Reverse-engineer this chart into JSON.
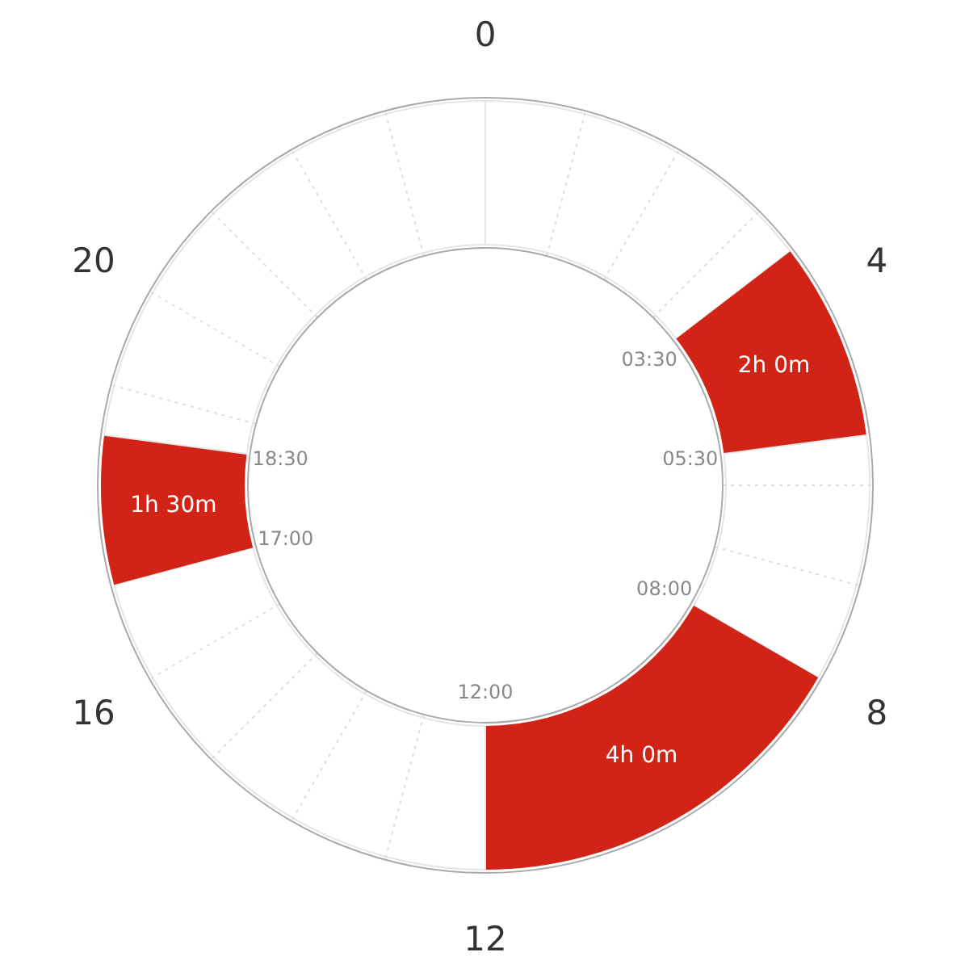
{
  "chart_data": {
    "type": "donut",
    "categories": [
      null,
      null,
      null,
      null,
      null,
      null,
      null
    ],
    "values": [
      3.5,
      2,
      2.5,
      4,
      5,
      1.5,
      5.5
    ],
    "colors": [
      "#ffffff",
      "#d12417",
      "#ffffff",
      "#d12417",
      "#ffffff",
      "#d12417",
      "#ffffff"
    ],
    "value_labels": [
      null,
      "2h 0m",
      null,
      "4h 0m",
      null,
      "1h 30m",
      null
    ],
    "grid": true,
    "annotations": [
      "03:30",
      "05:30",
      "08:00",
      "12:00",
      "17:00",
      "18:30",
      "0",
      "4",
      "8",
      "12",
      "16",
      "20"
    ]
  }
}
